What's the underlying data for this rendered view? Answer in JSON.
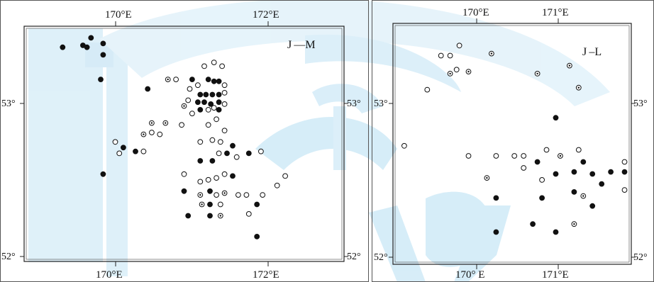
{
  "colors": {
    "ink": "#111111",
    "frame": "#222222",
    "watermark": "#d6ecf7",
    "background": "#ffffff"
  },
  "symbol_legend": [
    "filled-circle",
    "open-circle",
    "dotted-circle"
  ],
  "panels": [
    {
      "id": "left",
      "title": "J —M",
      "top_labels": [
        "170°E",
        "172°E"
      ],
      "bottom_labels": [
        "170°E",
        "172°E"
      ],
      "left_labels": [
        "53°",
        "52°"
      ],
      "right_labels": [
        "53°",
        "52°"
      ],
      "lon_range": [
        169.0,
        172.9
      ],
      "lat_range": [
        51.98,
        53.2
      ],
      "points": [
        {
          "lon": 169.7,
          "lat": 53.11,
          "s": "f"
        },
        {
          "lon": 169.8,
          "lat": 53.15,
          "s": "f"
        },
        {
          "lon": 169.95,
          "lat": 53.12,
          "s": "f"
        },
        {
          "lon": 169.45,
          "lat": 53.1,
          "s": "f"
        },
        {
          "lon": 169.75,
          "lat": 53.1,
          "s": "f"
        },
        {
          "lon": 169.95,
          "lat": 53.06,
          "s": "f"
        },
        {
          "lon": 169.92,
          "lat": 52.93,
          "s": "f"
        },
        {
          "lon": 170.5,
          "lat": 52.88,
          "s": "f"
        },
        {
          "lon": 170.75,
          "lat": 52.93,
          "s": "d"
        },
        {
          "lon": 170.85,
          "lat": 52.93,
          "s": "o"
        },
        {
          "lon": 171.05,
          "lat": 52.93,
          "s": "f"
        },
        {
          "lon": 171.2,
          "lat": 53.0,
          "s": "o"
        },
        {
          "lon": 171.32,
          "lat": 53.02,
          "s": "o"
        },
        {
          "lon": 171.42,
          "lat": 53.0,
          "s": "o"
        },
        {
          "lon": 171.12,
          "lat": 52.9,
          "s": "o"
        },
        {
          "lon": 171.25,
          "lat": 52.93,
          "s": "f"
        },
        {
          "lon": 171.32,
          "lat": 52.92,
          "s": "f"
        },
        {
          "lon": 171.38,
          "lat": 52.92,
          "s": "f"
        },
        {
          "lon": 171.45,
          "lat": 52.9,
          "s": "o"
        },
        {
          "lon": 171.02,
          "lat": 52.88,
          "s": "o"
        },
        {
          "lon": 171.15,
          "lat": 52.85,
          "s": "f"
        },
        {
          "lon": 171.22,
          "lat": 52.85,
          "s": "f"
        },
        {
          "lon": 171.3,
          "lat": 52.85,
          "s": "f"
        },
        {
          "lon": 171.38,
          "lat": 52.85,
          "s": "f"
        },
        {
          "lon": 171.45,
          "lat": 52.86,
          "s": "o"
        },
        {
          "lon": 171.0,
          "lat": 52.82,
          "s": "o"
        },
        {
          "lon": 171.12,
          "lat": 52.81,
          "s": "f"
        },
        {
          "lon": 171.2,
          "lat": 52.81,
          "s": "f"
        },
        {
          "lon": 171.28,
          "lat": 52.8,
          "s": "f"
        },
        {
          "lon": 171.38,
          "lat": 52.81,
          "s": "f"
        },
        {
          "lon": 171.45,
          "lat": 52.8,
          "s": "o"
        },
        {
          "lon": 171.15,
          "lat": 52.77,
          "s": "f"
        },
        {
          "lon": 171.25,
          "lat": 52.77,
          "s": "o"
        },
        {
          "lon": 171.38,
          "lat": 52.77,
          "s": "f"
        },
        {
          "lon": 171.32,
          "lat": 52.78,
          "s": "o"
        },
        {
          "lon": 170.95,
          "lat": 52.79,
          "s": "d"
        },
        {
          "lon": 171.05,
          "lat": 52.75,
          "s": "o"
        },
        {
          "lon": 171.25,
          "lat": 52.69,
          "s": "o"
        },
        {
          "lon": 171.35,
          "lat": 52.72,
          "s": "o"
        },
        {
          "lon": 171.45,
          "lat": 52.66,
          "s": "o"
        },
        {
          "lon": 171.4,
          "lat": 52.6,
          "s": "o"
        },
        {
          "lon": 171.3,
          "lat": 52.61,
          "s": "o"
        },
        {
          "lon": 171.15,
          "lat": 52.6,
          "s": "o"
        },
        {
          "lon": 171.55,
          "lat": 52.58,
          "s": "f"
        },
        {
          "lon": 171.48,
          "lat": 52.54,
          "s": "f"
        },
        {
          "lon": 171.38,
          "lat": 52.54,
          "s": "o"
        },
        {
          "lon": 171.6,
          "lat": 52.52,
          "s": "o"
        },
        {
          "lon": 171.75,
          "lat": 52.54,
          "s": "f"
        },
        {
          "lon": 171.9,
          "lat": 52.55,
          "s": "o"
        },
        {
          "lon": 171.15,
          "lat": 52.5,
          "s": "f"
        },
        {
          "lon": 171.3,
          "lat": 52.5,
          "s": "f"
        },
        {
          "lon": 170.55,
          "lat": 52.7,
          "s": "d"
        },
        {
          "lon": 170.55,
          "lat": 52.65,
          "s": "o"
        },
        {
          "lon": 170.72,
          "lat": 52.7,
          "s": "d"
        },
        {
          "lon": 170.65,
          "lat": 52.64,
          "s": "o"
        },
        {
          "lon": 170.45,
          "lat": 52.64,
          "s": "d"
        },
        {
          "lon": 170.92,
          "lat": 52.69,
          "s": "o"
        },
        {
          "lon": 170.45,
          "lat": 52.55,
          "s": "o"
        },
        {
          "lon": 170.35,
          "lat": 52.55,
          "s": "f"
        },
        {
          "lon": 170.2,
          "lat": 52.57,
          "s": "f"
        },
        {
          "lon": 170.1,
          "lat": 52.6,
          "s": "o"
        },
        {
          "lon": 170.15,
          "lat": 52.54,
          "s": "o"
        },
        {
          "lon": 169.95,
          "lat": 52.43,
          "s": "f"
        },
        {
          "lon": 170.95,
          "lat": 52.43,
          "s": "o"
        },
        {
          "lon": 171.25,
          "lat": 52.4,
          "s": "o"
        },
        {
          "lon": 171.35,
          "lat": 52.41,
          "s": "o"
        },
        {
          "lon": 171.45,
          "lat": 52.43,
          "s": "o"
        },
        {
          "lon": 171.55,
          "lat": 52.42,
          "s": "f"
        },
        {
          "lon": 171.15,
          "lat": 52.39,
          "s": "o"
        },
        {
          "lon": 170.95,
          "lat": 52.34,
          "s": "f"
        },
        {
          "lon": 171.15,
          "lat": 52.32,
          "s": "d"
        },
        {
          "lon": 171.27,
          "lat": 52.34,
          "s": "f"
        },
        {
          "lon": 171.35,
          "lat": 52.32,
          "s": "o"
        },
        {
          "lon": 171.45,
          "lat": 52.33,
          "s": "d"
        },
        {
          "lon": 171.62,
          "lat": 52.32,
          "s": "o"
        },
        {
          "lon": 171.72,
          "lat": 52.32,
          "s": "o"
        },
        {
          "lon": 171.92,
          "lat": 52.32,
          "s": "o"
        },
        {
          "lon": 172.1,
          "lat": 52.37,
          "s": "o"
        },
        {
          "lon": 172.2,
          "lat": 52.42,
          "s": "o"
        },
        {
          "lon": 171.17,
          "lat": 52.27,
          "s": "d"
        },
        {
          "lon": 171.27,
          "lat": 52.27,
          "s": "f"
        },
        {
          "lon": 171.4,
          "lat": 52.27,
          "s": "o"
        },
        {
          "lon": 171.85,
          "lat": 52.27,
          "s": "f"
        },
        {
          "lon": 171.75,
          "lat": 52.22,
          "s": "o"
        },
        {
          "lon": 171.0,
          "lat": 52.21,
          "s": "f"
        },
        {
          "lon": 171.27,
          "lat": 52.21,
          "s": "f"
        },
        {
          "lon": 171.4,
          "lat": 52.21,
          "s": "d"
        },
        {
          "lon": 171.85,
          "lat": 52.1,
          "s": "f"
        }
      ]
    },
    {
      "id": "right",
      "title": "J –L",
      "top_labels": [
        "170°E",
        "171°E"
      ],
      "bottom_labels": [
        "170° E",
        "171°E"
      ],
      "left_labels": [
        "53°",
        "52°"
      ],
      "right_labels": [
        "53°",
        "52°"
      ],
      "lon_range": [
        169.25,
        171.8
      ],
      "lat_range": [
        52.02,
        53.2
      ],
      "points": [
        {
          "lon": 169.85,
          "lat": 53.05,
          "s": "o"
        },
        {
          "lon": 169.95,
          "lat": 53.1,
          "s": "o"
        },
        {
          "lon": 169.75,
          "lat": 53.05,
          "s": "o"
        },
        {
          "lon": 169.85,
          "lat": 52.96,
          "s": "d"
        },
        {
          "lon": 169.92,
          "lat": 52.98,
          "s": "o"
        },
        {
          "lon": 170.05,
          "lat": 52.97,
          "s": "d"
        },
        {
          "lon": 170.3,
          "lat": 53.06,
          "s": "d"
        },
        {
          "lon": 169.6,
          "lat": 52.88,
          "s": "o"
        },
        {
          "lon": 170.8,
          "lat": 52.96,
          "s": "d"
        },
        {
          "lon": 171.15,
          "lat": 53.0,
          "s": "d"
        },
        {
          "lon": 171.25,
          "lat": 52.89,
          "s": "d"
        },
        {
          "lon": 171.0,
          "lat": 52.74,
          "s": "f"
        },
        {
          "lon": 169.35,
          "lat": 52.6,
          "s": "o"
        },
        {
          "lon": 170.05,
          "lat": 52.55,
          "s": "o"
        },
        {
          "lon": 170.35,
          "lat": 52.55,
          "s": "o"
        },
        {
          "lon": 170.55,
          "lat": 52.55,
          "s": "o"
        },
        {
          "lon": 170.65,
          "lat": 52.55,
          "s": "o"
        },
        {
          "lon": 170.9,
          "lat": 52.58,
          "s": "o"
        },
        {
          "lon": 171.05,
          "lat": 52.55,
          "s": "d"
        },
        {
          "lon": 171.25,
          "lat": 52.58,
          "s": "o"
        },
        {
          "lon": 170.8,
          "lat": 52.52,
          "s": "f"
        },
        {
          "lon": 171.3,
          "lat": 52.52,
          "s": "f"
        },
        {
          "lon": 171.75,
          "lat": 52.52,
          "s": "o"
        },
        {
          "lon": 170.65,
          "lat": 52.49,
          "s": "o"
        },
        {
          "lon": 171.2,
          "lat": 52.47,
          "s": "f"
        },
        {
          "lon": 171.6,
          "lat": 52.47,
          "s": "f"
        },
        {
          "lon": 171.75,
          "lat": 52.47,
          "s": "f"
        },
        {
          "lon": 171.0,
          "lat": 52.46,
          "s": "f"
        },
        {
          "lon": 171.4,
          "lat": 52.46,
          "s": "f"
        },
        {
          "lon": 170.25,
          "lat": 52.44,
          "s": "d"
        },
        {
          "lon": 170.85,
          "lat": 52.43,
          "s": "o"
        },
        {
          "lon": 171.5,
          "lat": 52.41,
          "s": "f"
        },
        {
          "lon": 171.75,
          "lat": 52.38,
          "s": "o"
        },
        {
          "lon": 170.35,
          "lat": 52.34,
          "s": "f"
        },
        {
          "lon": 170.85,
          "lat": 52.34,
          "s": "f"
        },
        {
          "lon": 171.2,
          "lat": 52.37,
          "s": "f"
        },
        {
          "lon": 171.3,
          "lat": 52.35,
          "s": "d"
        },
        {
          "lon": 171.4,
          "lat": 52.3,
          "s": "f"
        },
        {
          "lon": 170.75,
          "lat": 52.21,
          "s": "f"
        },
        {
          "lon": 171.2,
          "lat": 52.21,
          "s": "d"
        },
        {
          "lon": 170.35,
          "lat": 52.17,
          "s": "f"
        },
        {
          "lon": 171.0,
          "lat": 52.17,
          "s": "f"
        }
      ]
    }
  ]
}
